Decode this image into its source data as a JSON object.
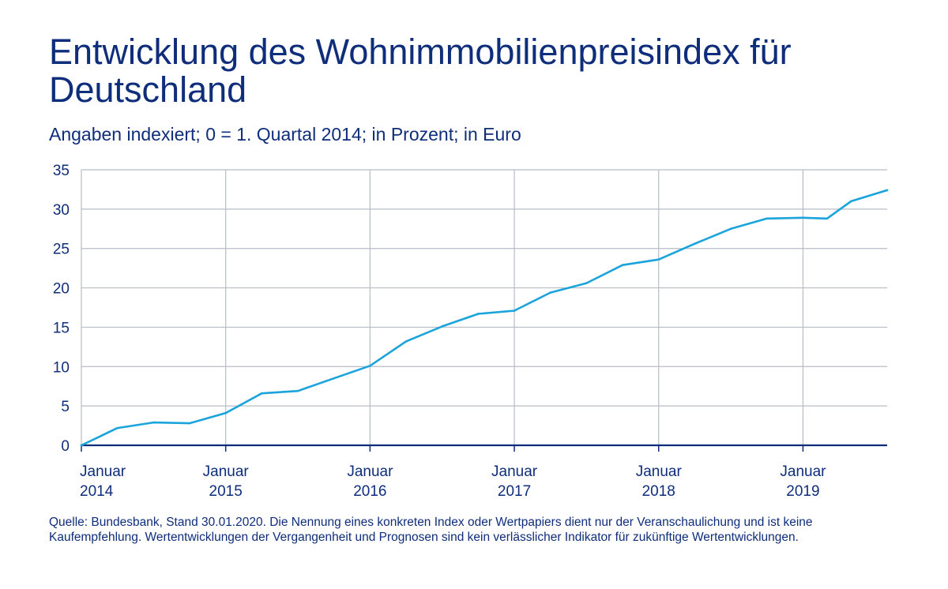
{
  "header": {
    "title": "Entwicklung des Wohnimmobilienpreisindex für Deutschland",
    "subtitle": "Angaben indexiert; 0 = 1. Quartal 2014; in Prozent; in Euro"
  },
  "footer": {
    "note": "Quelle: Bundesbank, Stand 30.01.2020. Die Nennung eines konkreten Index oder Wertpapiers dient nur der Veranschaulichung und ist keine Kaufempfehlung. Wertentwicklungen der Vergangenheit und Prognosen sind kein verlässlicher Indikator für zukünftige Wertentwicklungen."
  },
  "colors": {
    "line": "#1ba3dc",
    "axis": "#0e2d7a",
    "grid": "#b8bcc8",
    "text": "#0e2d7a"
  },
  "chart_data": {
    "type": "line",
    "title": "Entwicklung des Wohnimmobilienpreisindex für Deutschland",
    "subtitle": "Angaben indexiert; 0 = 1. Quartal 2014; in Prozent; in Euro",
    "xlabel": "",
    "ylabel": "",
    "ylim": [
      0,
      35
    ],
    "yticks": [
      0,
      5,
      10,
      15,
      20,
      25,
      30,
      35
    ],
    "xlim": [
      "2014-01",
      "2019-08"
    ],
    "xticks": [
      {
        "x": "2014-01",
        "line1": "Januar",
        "line2": "2014"
      },
      {
        "x": "2015-01",
        "line1": "Januar",
        "line2": "2015"
      },
      {
        "x": "2016-01",
        "line1": "Januar",
        "line2": "2016"
      },
      {
        "x": "2017-01",
        "line1": "Januar",
        "line2": "2017"
      },
      {
        "x": "2018-01",
        "line1": "Januar",
        "line2": "2018"
      },
      {
        "x": "2019-01",
        "line1": "Januar",
        "line2": "2019"
      }
    ],
    "grid": true,
    "series": [
      {
        "x": [
          "2014-01",
          "2014-04",
          "2014-07",
          "2014-10",
          "2015-01",
          "2015-04",
          "2015-07",
          "2015-10",
          "2016-01",
          "2016-04",
          "2016-07",
          "2016-10",
          "2017-01",
          "2017-04",
          "2017-07",
          "2017-10",
          "2018-01",
          "2018-04",
          "2018-07",
          "2018-10",
          "2019-01",
          "2019-03",
          "2019-05",
          "2019-08"
        ],
        "values": [
          0,
          2.2,
          2.9,
          2.8,
          4.1,
          6.6,
          6.9,
          8.5,
          10.1,
          13.2,
          15.1,
          16.7,
          17.1,
          19.4,
          20.6,
          22.9,
          23.6,
          25.6,
          27.5,
          28.8,
          28.9,
          28.8,
          31.0,
          32.4
        ]
      }
    ]
  }
}
